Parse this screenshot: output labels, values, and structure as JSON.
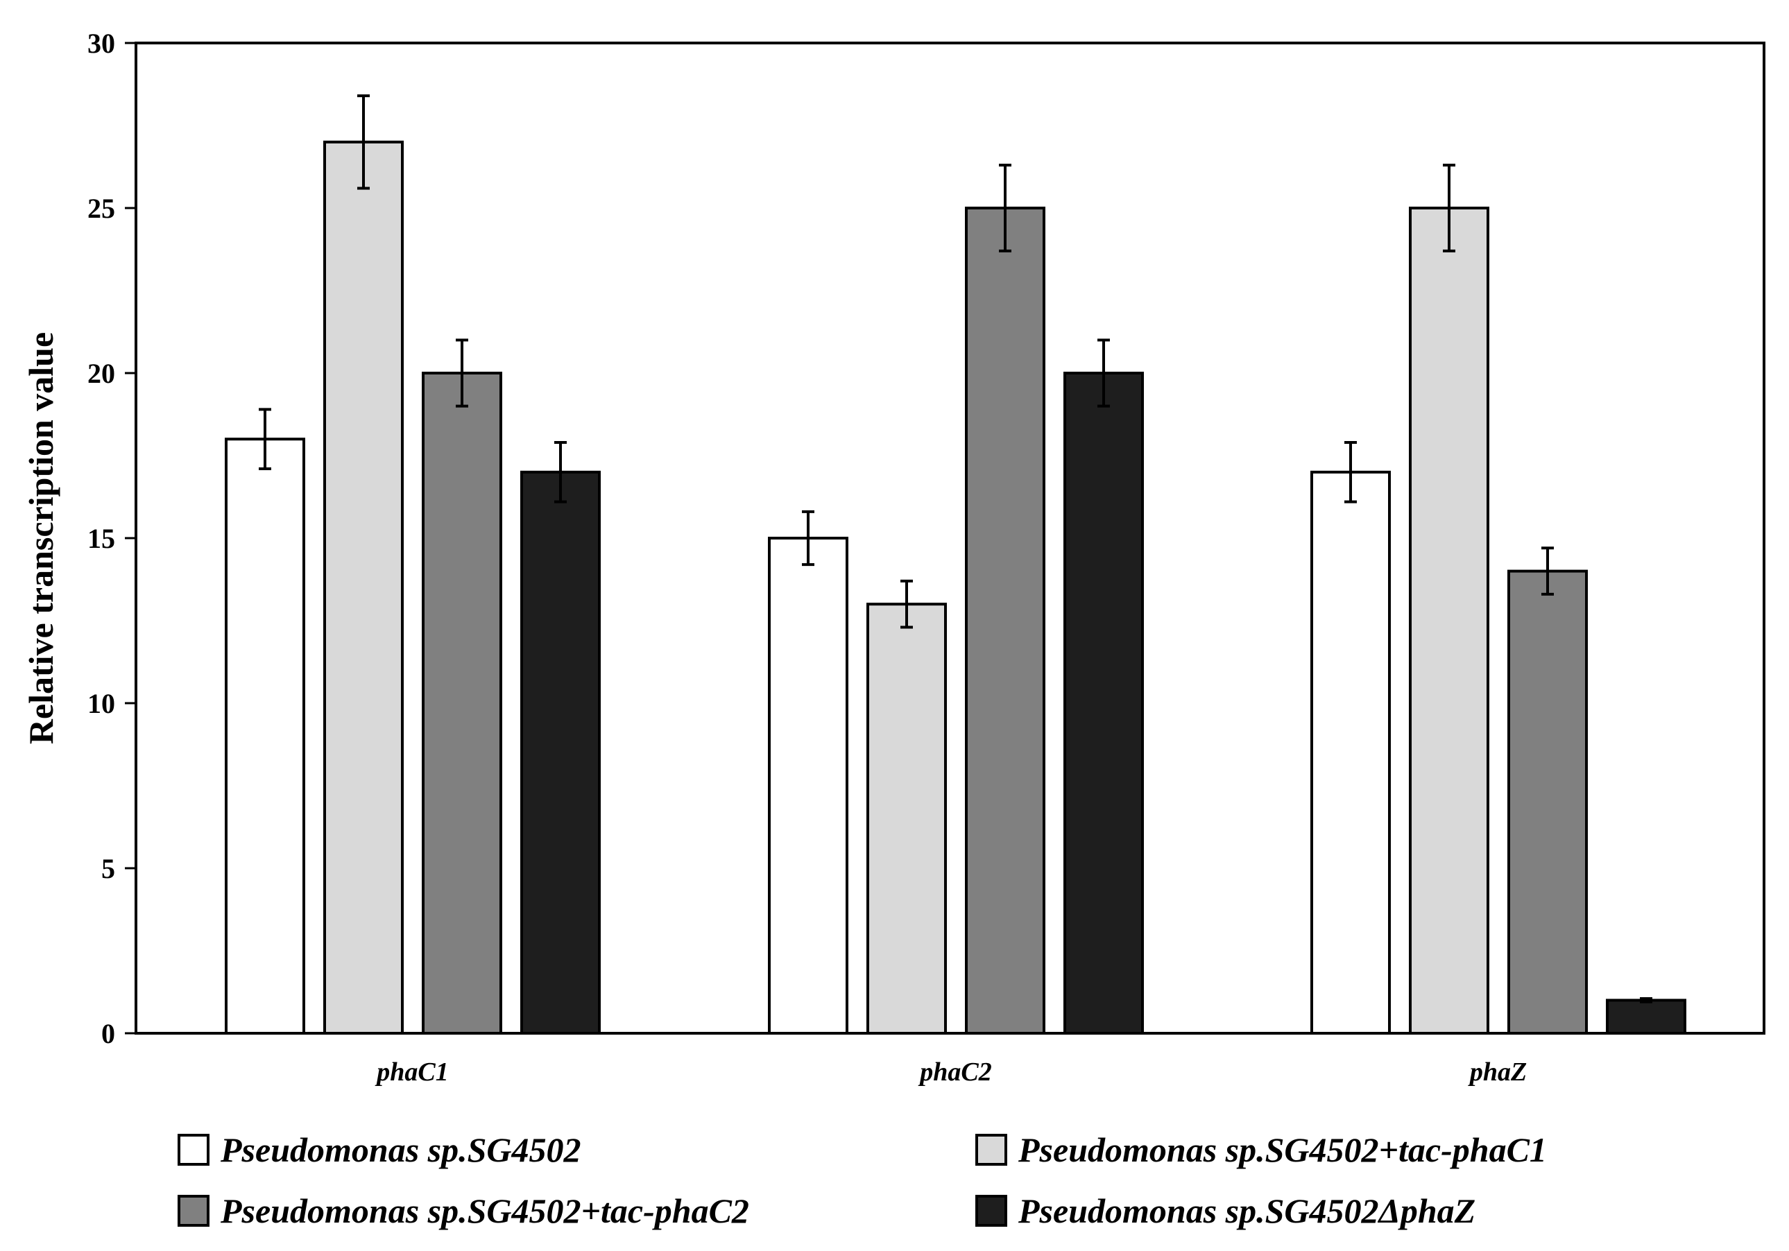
{
  "chart_data": {
    "type": "bar",
    "title": "",
    "xlabel": "",
    "ylabel": "Relative transcription value",
    "ylim": [
      0,
      30
    ],
    "yticks": [
      "0",
      "5",
      "10",
      "15",
      "20",
      "25",
      "30"
    ],
    "categories": [
      "phaC1",
      "phaC2",
      "phaZ"
    ],
    "series": [
      {
        "name": "Pseudomonas sp.SG4502",
        "color": "#ffffff",
        "values": [
          18,
          15,
          17
        ],
        "errors": [
          0.9,
          0.8,
          0.9
        ]
      },
      {
        "name": "Pseudomonas sp.SG4502+tac-phaC1",
        "color": "#d9d9d9",
        "values": [
          27,
          13,
          25
        ],
        "errors": [
          1.4,
          0.7,
          1.3
        ]
      },
      {
        "name": "Pseudomonas sp.SG4502+tac-phaC2",
        "color": "#808080",
        "values": [
          20,
          25,
          14
        ],
        "errors": [
          1.0,
          1.3,
          0.7
        ]
      },
      {
        "name": "Pseudomonas sp.SG4502ΔphaZ",
        "color": "#1e1e1e",
        "values": [
          17,
          20,
          1
        ],
        "errors": [
          0.9,
          1.0,
          0.05
        ]
      }
    ],
    "grid": false,
    "legend_position": "bottom"
  }
}
